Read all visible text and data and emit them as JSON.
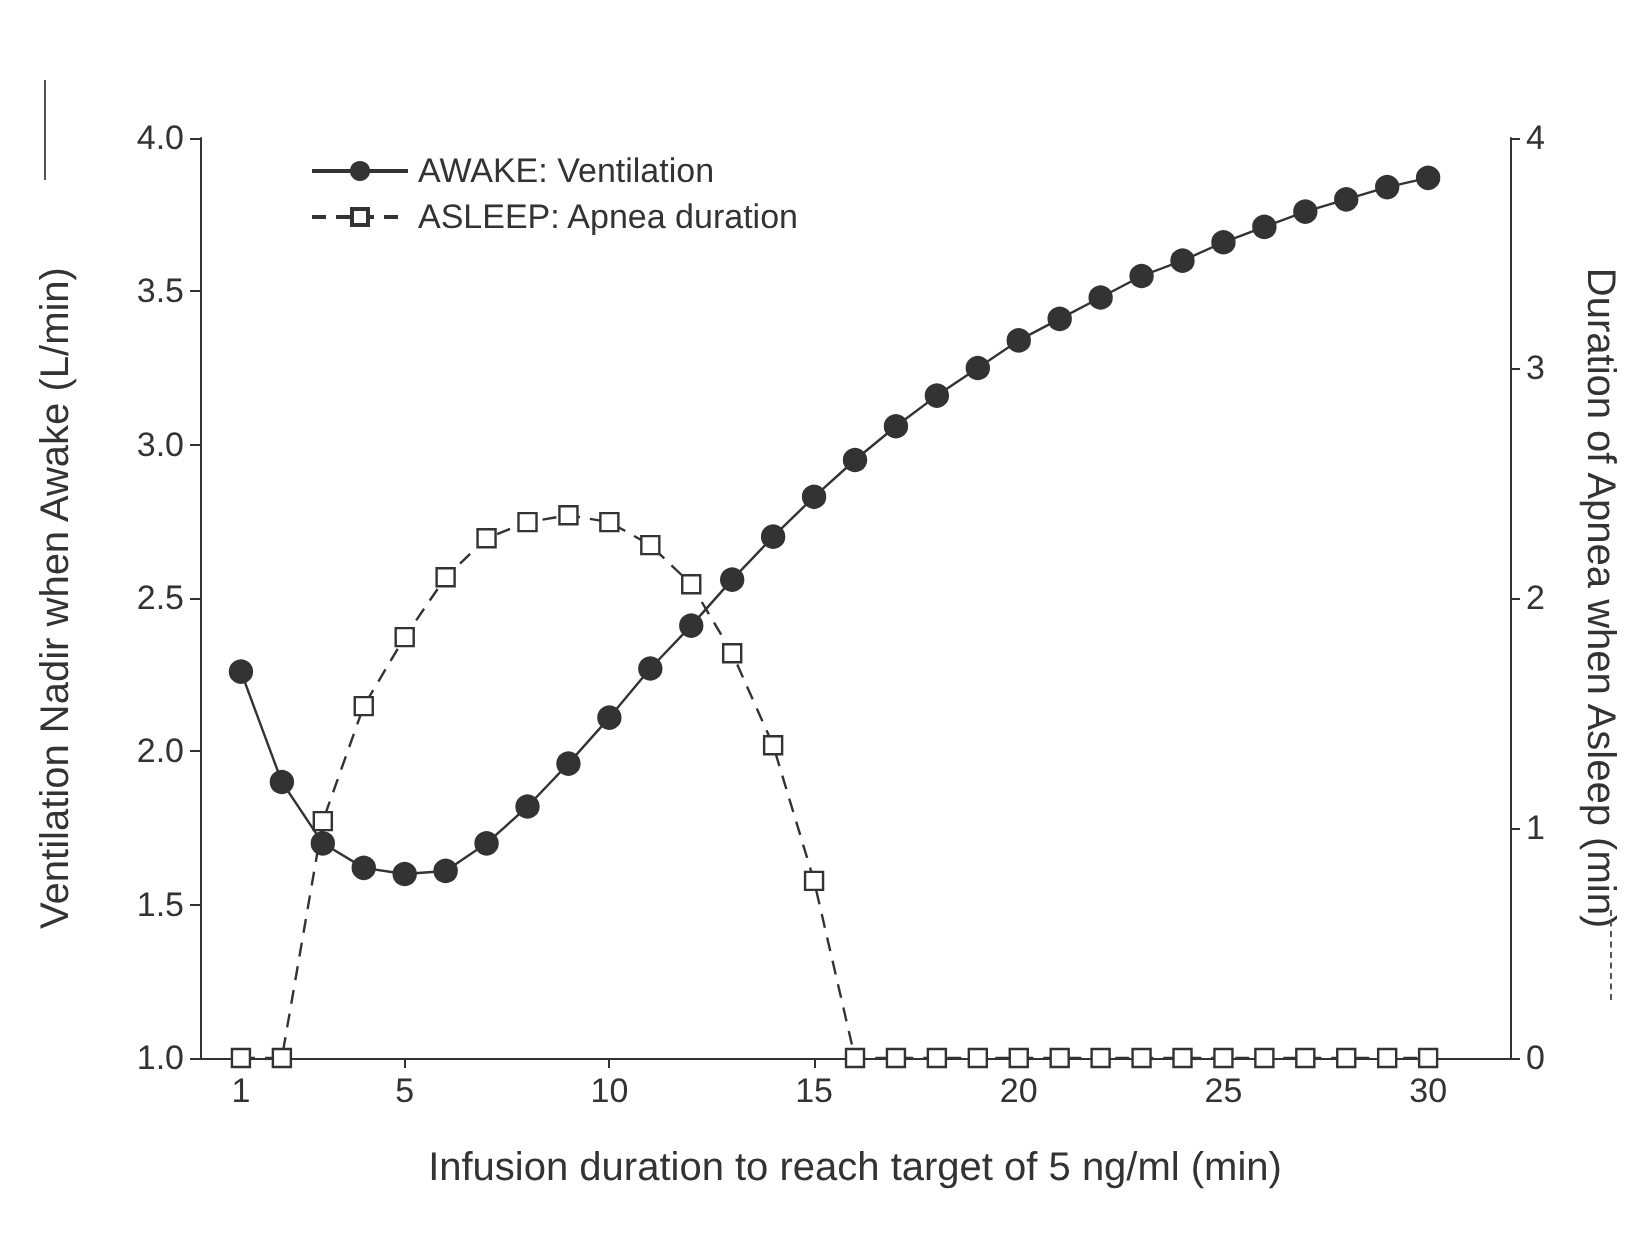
{
  "chart_data": {
    "type": "line",
    "xlabel": "Infusion duration to reach target of 5 ng/ml (min)",
    "ylabel": "Ventilation Nadir when Awake (L/min)",
    "y2label": "Duration of Apnea when Asleep (min)",
    "x": [
      1,
      2,
      3,
      4,
      5,
      6,
      7,
      8,
      9,
      10,
      11,
      12,
      13,
      14,
      15,
      16,
      17,
      18,
      19,
      20,
      21,
      22,
      23,
      24,
      25,
      26,
      27,
      28,
      29,
      30
    ],
    "series": [
      {
        "name": "AWAKE: Ventilation",
        "color": "#333333",
        "marker": "circle",
        "line_style": "solid",
        "values": [
          2.26,
          1.9,
          1.7,
          1.62,
          1.6,
          1.61,
          1.7,
          1.82,
          1.96,
          2.11,
          2.27,
          2.41,
          2.56,
          2.7,
          2.83,
          2.95,
          3.06,
          3.16,
          3.25,
          3.34,
          3.41,
          3.48,
          3.55,
          3.6,
          3.66,
          3.71,
          3.76,
          3.8,
          3.84,
          3.87
        ]
      },
      {
        "name": "ASLEEP: Apnea duration",
        "color": "#333333",
        "marker": "square",
        "line_style": "dashed",
        "axis": "y2",
        "values": [
          0,
          0,
          1.03,
          1.53,
          1.83,
          2.09,
          2.26,
          2.33,
          2.36,
          2.33,
          2.23,
          2.06,
          1.76,
          1.36,
          0.77,
          0,
          0,
          0,
          0,
          0,
          0,
          0,
          0,
          0,
          0,
          0,
          0,
          0,
          0,
          0
        ]
      }
    ],
    "xlim": [
      0,
      32
    ],
    "xticks": [
      1,
      5,
      10,
      15,
      20,
      25,
      30
    ],
    "ylim": [
      1,
      4
    ],
    "yticks": [
      {
        "value": 1,
        "label": "1.0"
      },
      {
        "value": 1.5,
        "label": "1.5"
      },
      {
        "value": 2,
        "label": "2.0"
      },
      {
        "value": 2.5,
        "label": "2.5"
      },
      {
        "value": 3,
        "label": "3.0"
      },
      {
        "value": 3.5,
        "label": "3.5"
      },
      {
        "value": 4,
        "label": "4.0"
      }
    ],
    "y2lim": [
      0,
      4
    ],
    "y2ticks": [
      0,
      1,
      2,
      3,
      4
    ],
    "grid": false,
    "legend": "top left"
  }
}
